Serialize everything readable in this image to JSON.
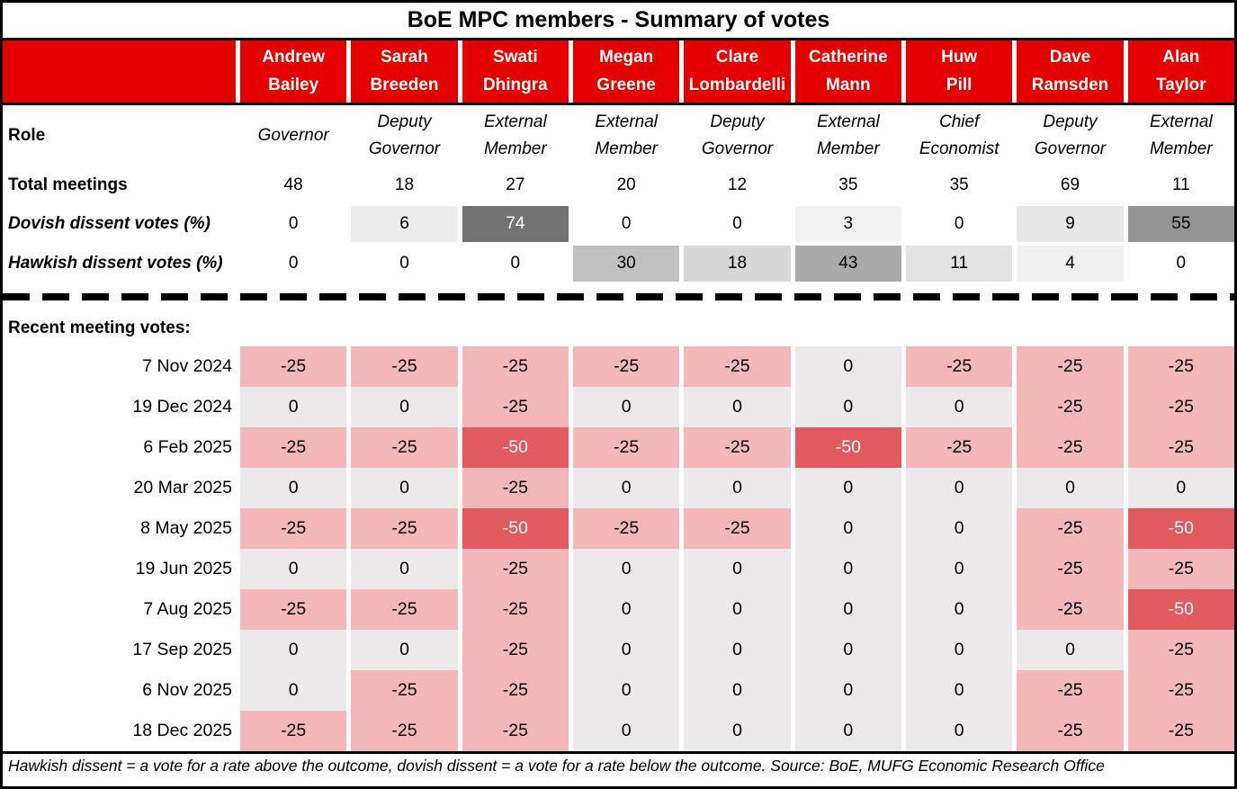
{
  "title": "BoE MPC members - Summary of votes",
  "row_labels": {
    "role": "Role",
    "total_meetings": "Total meetings",
    "dovish": "Dovish dissent votes (%)",
    "hawkish": "Hawkish dissent votes (%)",
    "recent": "Recent meeting votes:"
  },
  "members": [
    {
      "first": "Andrew",
      "last": "Bailey",
      "role": [
        "Governor"
      ],
      "total_meetings": 48,
      "dovish_dissent_pct": 0,
      "hawkish_dissent_pct": 0
    },
    {
      "first": "Sarah",
      "last": "Breeden",
      "role": [
        "Deputy",
        "Governor"
      ],
      "total_meetings": 18,
      "dovish_dissent_pct": 6,
      "hawkish_dissent_pct": 0
    },
    {
      "first": "Swati",
      "last": "Dhingra",
      "role": [
        "External",
        "Member"
      ],
      "total_meetings": 27,
      "dovish_dissent_pct": 74,
      "hawkish_dissent_pct": 0
    },
    {
      "first": "Megan",
      "last": "Greene",
      "role": [
        "External",
        "Member"
      ],
      "total_meetings": 20,
      "dovish_dissent_pct": 0,
      "hawkish_dissent_pct": 30
    },
    {
      "first": "Clare",
      "last": "Lombardelli",
      "role": [
        "Deputy",
        "Governor"
      ],
      "total_meetings": 12,
      "dovish_dissent_pct": 0,
      "hawkish_dissent_pct": 18
    },
    {
      "first": "Catherine",
      "last": "Mann",
      "role": [
        "External",
        "Member"
      ],
      "total_meetings": 35,
      "dovish_dissent_pct": 3,
      "hawkish_dissent_pct": 43
    },
    {
      "first": "Huw",
      "last": "Pill",
      "role": [
        "Chief",
        "Economist"
      ],
      "total_meetings": 35,
      "dovish_dissent_pct": 0,
      "hawkish_dissent_pct": 11
    },
    {
      "first": "Dave",
      "last": "Ramsden",
      "role": [
        "Deputy",
        "Governor"
      ],
      "total_meetings": 69,
      "dovish_dissent_pct": 9,
      "hawkish_dissent_pct": 4
    },
    {
      "first": "Alan",
      "last": "Taylor",
      "role": [
        "External",
        "Member"
      ],
      "total_meetings": 11,
      "dovish_dissent_pct": 55,
      "hawkish_dissent_pct": 0
    }
  ],
  "meetings": [
    {
      "date": "7 Nov 2024",
      "votes": [
        -25,
        -25,
        -25,
        -25,
        -25,
        0,
        -25,
        -25,
        -25
      ]
    },
    {
      "date": "19 Dec 2024",
      "votes": [
        0,
        0,
        -25,
        0,
        0,
        0,
        0,
        -25,
        -25
      ]
    },
    {
      "date": "6 Feb 2025",
      "votes": [
        -25,
        -25,
        -50,
        -25,
        -25,
        -50,
        -25,
        -25,
        -25
      ]
    },
    {
      "date": "20 Mar 2025",
      "votes": [
        0,
        0,
        -25,
        0,
        0,
        0,
        0,
        0,
        0
      ]
    },
    {
      "date": "8 May 2025",
      "votes": [
        -25,
        -25,
        -50,
        -25,
        -25,
        0,
        0,
        -25,
        -50
      ]
    },
    {
      "date": "19 Jun 2025",
      "votes": [
        0,
        0,
        -25,
        0,
        0,
        0,
        0,
        -25,
        -25
      ]
    },
    {
      "date": "7 Aug 2025",
      "votes": [
        -25,
        -25,
        -25,
        0,
        0,
        0,
        0,
        -25,
        -50
      ]
    },
    {
      "date": "17 Sep 2025",
      "votes": [
        0,
        0,
        -25,
        0,
        0,
        0,
        0,
        0,
        -25
      ]
    },
    {
      "date": "6 Nov 2025",
      "votes": [
        0,
        -25,
        -25,
        0,
        0,
        0,
        0,
        -25,
        -25
      ]
    },
    {
      "date": "18 Dec 2025",
      "votes": [
        -25,
        -25,
        -25,
        0,
        0,
        0,
        0,
        -25,
        -25
      ]
    }
  ],
  "footnote": "Hawkish dissent = a vote for a rate above the outcome, dovish dissent = a vote for a rate below the outcome. Source: BoE, MUFG Economic Research Office",
  "colors": {
    "header_red": "#E50000",
    "vote_hold_bg": "#EBE9E9",
    "vote_cut25_bg": "#F4B7BA",
    "vote_cut50_bg": "#E05A60",
    "vote_cut50_text": "#FFFFFF",
    "dissent_max_bg": "#727272",
    "dissent_max_text": "#FFFFFF"
  },
  "chart_data": {
    "type": "table",
    "title": "BoE MPC members - Summary of votes",
    "columns": [
      "Andrew Bailey",
      "Sarah Breeden",
      "Swati Dhingra",
      "Megan Greene",
      "Clare Lombardelli",
      "Catherine Mann",
      "Huw Pill",
      "Dave Ramsden",
      "Alan Taylor"
    ],
    "rows": [
      {
        "label": "Role",
        "values": [
          "Governor",
          "Deputy Governor",
          "External Member",
          "External Member",
          "Deputy Governor",
          "External Member",
          "Chief Economist",
          "Deputy Governor",
          "External Member"
        ]
      },
      {
        "label": "Total meetings",
        "values": [
          48,
          18,
          27,
          20,
          12,
          35,
          35,
          69,
          11
        ]
      },
      {
        "label": "Dovish dissent votes (%)",
        "values": [
          0,
          6,
          74,
          0,
          0,
          3,
          0,
          9,
          55
        ]
      },
      {
        "label": "Hawkish dissent votes (%)",
        "values": [
          0,
          0,
          0,
          30,
          18,
          43,
          11,
          4,
          0
        ]
      },
      {
        "label": "7 Nov 2024",
        "values": [
          -25,
          -25,
          -25,
          -25,
          -25,
          0,
          -25,
          -25,
          -25
        ]
      },
      {
        "label": "19 Dec 2024",
        "values": [
          0,
          0,
          -25,
          0,
          0,
          0,
          0,
          -25,
          -25
        ]
      },
      {
        "label": "6 Feb 2025",
        "values": [
          -25,
          -25,
          -50,
          -25,
          -25,
          -50,
          -25,
          -25,
          -25
        ]
      },
      {
        "label": "20 Mar 2025",
        "values": [
          0,
          0,
          -25,
          0,
          0,
          0,
          0,
          0,
          0
        ]
      },
      {
        "label": "8 May 2025",
        "values": [
          -25,
          -25,
          -50,
          -25,
          -25,
          0,
          0,
          -25,
          -50
        ]
      },
      {
        "label": "19 Jun 2025",
        "values": [
          0,
          0,
          -25,
          0,
          0,
          0,
          0,
          -25,
          -25
        ]
      },
      {
        "label": "7 Aug 2025",
        "values": [
          -25,
          -25,
          -25,
          0,
          0,
          0,
          0,
          -25,
          -50
        ]
      },
      {
        "label": "17 Sep 2025",
        "values": [
          0,
          0,
          -25,
          0,
          0,
          0,
          0,
          0,
          -25
        ]
      },
      {
        "label": "6 Nov 2025",
        "values": [
          0,
          -25,
          -25,
          0,
          0,
          0,
          0,
          -25,
          -25
        ]
      },
      {
        "label": "18 Dec 2025",
        "values": [
          -25,
          -25,
          -25,
          0,
          0,
          0,
          0,
          -25,
          -25
        ]
      }
    ]
  }
}
